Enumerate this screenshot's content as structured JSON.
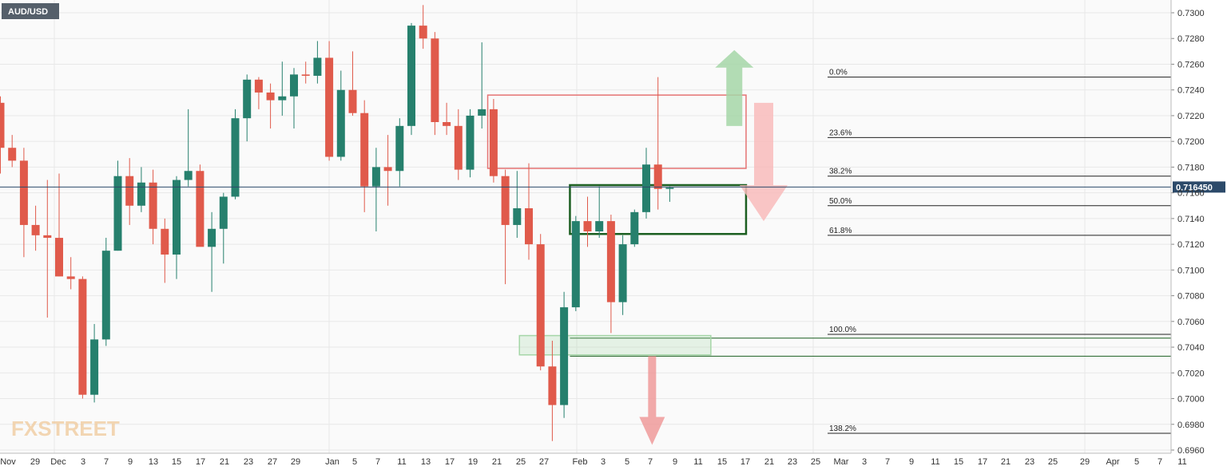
{
  "instrument": "AUD/USD",
  "watermark": "FXSTREET",
  "current_price_label": "0.716450",
  "chart_data": {
    "type": "candlestick",
    "title": "AUD/USD",
    "x_axis_labels": [
      "Nov",
      "29",
      "Dec",
      "3",
      "7",
      "9",
      "13",
      "15",
      "17",
      "21",
      "23",
      "27",
      "29",
      "Jan",
      "5",
      "7",
      "11",
      "13",
      "17",
      "19",
      "21",
      "25",
      "27",
      "Feb",
      "3",
      "5",
      "7",
      "9",
      "11",
      "15",
      "17",
      "21",
      "23",
      "25",
      "Mar",
      "3",
      "7",
      "9",
      "11",
      "15",
      "17",
      "21",
      "23",
      "25",
      "29",
      "Apr",
      "5",
      "7",
      "11"
    ],
    "y_ticks": [
      "0.7300",
      "0.7280",
      "0.7260",
      "0.7240",
      "0.7220",
      "0.7200",
      "0.7180",
      "0.7160",
      "0.7140",
      "0.7120",
      "0.7100",
      "0.7080",
      "0.7060",
      "0.7040",
      "0.7020",
      "0.7000",
      "0.6980",
      "0.6960"
    ],
    "ylim": [
      0.696,
      0.7306
    ],
    "grid": true,
    "current_price": 0.71645,
    "candles": [
      {
        "o": 0.723,
        "h": 0.7235,
        "l": 0.7175,
        "c": 0.7195
      },
      {
        "o": 0.7195,
        "h": 0.7205,
        "l": 0.718,
        "c": 0.7185
      },
      {
        "o": 0.7185,
        "h": 0.7195,
        "l": 0.711,
        "c": 0.7135
      },
      {
        "o": 0.7135,
        "h": 0.715,
        "l": 0.7115,
        "c": 0.7127
      },
      {
        "o": 0.7127,
        "h": 0.717,
        "l": 0.7063,
        "c": 0.7125
      },
      {
        "o": 0.7125,
        "h": 0.7175,
        "l": 0.7095,
        "c": 0.7095
      },
      {
        "o": 0.7095,
        "h": 0.711,
        "l": 0.7085,
        "c": 0.7093
      },
      {
        "o": 0.7093,
        "h": 0.7095,
        "l": 0.7,
        "c": 0.7003
      },
      {
        "o": 0.7003,
        "h": 0.7058,
        "l": 0.6997,
        "c": 0.7046
      },
      {
        "o": 0.7046,
        "h": 0.7125,
        "l": 0.7041,
        "c": 0.7115
      },
      {
        "o": 0.7115,
        "h": 0.7185,
        "l": 0.7115,
        "c": 0.7173
      },
      {
        "o": 0.7173,
        "h": 0.7187,
        "l": 0.7135,
        "c": 0.715
      },
      {
        "o": 0.715,
        "h": 0.718,
        "l": 0.7145,
        "c": 0.7168
      },
      {
        "o": 0.7168,
        "h": 0.7178,
        "l": 0.712,
        "c": 0.7132
      },
      {
        "o": 0.7132,
        "h": 0.714,
        "l": 0.709,
        "c": 0.7112
      },
      {
        "o": 0.7112,
        "h": 0.7173,
        "l": 0.7093,
        "c": 0.717
      },
      {
        "o": 0.717,
        "h": 0.7225,
        "l": 0.7165,
        "c": 0.7177
      },
      {
        "o": 0.7177,
        "h": 0.7182,
        "l": 0.712,
        "c": 0.7118
      },
      {
        "o": 0.7118,
        "h": 0.7145,
        "l": 0.7083,
        "c": 0.7132
      },
      {
        "o": 0.7132,
        "h": 0.716,
        "l": 0.7105,
        "c": 0.7157
      },
      {
        "o": 0.7157,
        "h": 0.7225,
        "l": 0.7155,
        "c": 0.7218
      },
      {
        "o": 0.7218,
        "h": 0.7252,
        "l": 0.72,
        "c": 0.7248
      },
      {
        "o": 0.7248,
        "h": 0.725,
        "l": 0.7225,
        "c": 0.7238
      },
      {
        "o": 0.7238,
        "h": 0.7245,
        "l": 0.721,
        "c": 0.7232
      },
      {
        "o": 0.7232,
        "h": 0.7262,
        "l": 0.722,
        "c": 0.7235
      },
      {
        "o": 0.7235,
        "h": 0.7257,
        "l": 0.721,
        "c": 0.7252
      },
      {
        "o": 0.7252,
        "h": 0.7262,
        "l": 0.7245,
        "c": 0.7251
      },
      {
        "o": 0.7251,
        "h": 0.7278,
        "l": 0.7245,
        "c": 0.7265
      },
      {
        "o": 0.7265,
        "h": 0.7278,
        "l": 0.7185,
        "c": 0.7188
      },
      {
        "o": 0.7188,
        "h": 0.7255,
        "l": 0.7185,
        "c": 0.724
      },
      {
        "o": 0.724,
        "h": 0.727,
        "l": 0.722,
        "c": 0.7222
      },
      {
        "o": 0.7222,
        "h": 0.7232,
        "l": 0.7145,
        "c": 0.7165
      },
      {
        "o": 0.7165,
        "h": 0.7195,
        "l": 0.713,
        "c": 0.718
      },
      {
        "o": 0.718,
        "h": 0.7205,
        "l": 0.715,
        "c": 0.7177
      },
      {
        "o": 0.7177,
        "h": 0.7218,
        "l": 0.7165,
        "c": 0.7212
      },
      {
        "o": 0.7212,
        "h": 0.7292,
        "l": 0.7205,
        "c": 0.729
      },
      {
        "o": 0.729,
        "h": 0.7306,
        "l": 0.7272,
        "c": 0.728
      },
      {
        "o": 0.728,
        "h": 0.7285,
        "l": 0.7205,
        "c": 0.7215
      },
      {
        "o": 0.7215,
        "h": 0.723,
        "l": 0.7205,
        "c": 0.7212
      },
      {
        "o": 0.7212,
        "h": 0.7225,
        "l": 0.717,
        "c": 0.7178
      },
      {
        "o": 0.7178,
        "h": 0.7225,
        "l": 0.7172,
        "c": 0.722
      },
      {
        "o": 0.722,
        "h": 0.7277,
        "l": 0.721,
        "c": 0.7225
      },
      {
        "o": 0.7225,
        "h": 0.7233,
        "l": 0.7168,
        "c": 0.7173
      },
      {
        "o": 0.7173,
        "h": 0.7178,
        "l": 0.7089,
        "c": 0.7135
      },
      {
        "o": 0.7135,
        "h": 0.7177,
        "l": 0.7125,
        "c": 0.7148
      },
      {
        "o": 0.7148,
        "h": 0.7183,
        "l": 0.7108,
        "c": 0.712
      },
      {
        "o": 0.712,
        "h": 0.7128,
        "l": 0.7022,
        "c": 0.7025
      },
      {
        "o": 0.7025,
        "h": 0.7045,
        "l": 0.6967,
        "c": 0.6995
      },
      {
        "o": 0.6995,
        "h": 0.7083,
        "l": 0.6985,
        "c": 0.7071
      },
      {
        "o": 0.7071,
        "h": 0.7142,
        "l": 0.7068,
        "c": 0.7138
      },
      {
        "o": 0.7138,
        "h": 0.7157,
        "l": 0.7118,
        "c": 0.713
      },
      {
        "o": 0.713,
        "h": 0.7165,
        "l": 0.7125,
        "c": 0.7138
      },
      {
        "o": 0.7138,
        "h": 0.7143,
        "l": 0.7051,
        "c": 0.7075
      },
      {
        "o": 0.7075,
        "h": 0.7127,
        "l": 0.7065,
        "c": 0.712
      },
      {
        "o": 0.712,
        "h": 0.7147,
        "l": 0.7118,
        "c": 0.7145
      },
      {
        "o": 0.7145,
        "h": 0.7195,
        "l": 0.714,
        "c": 0.7182
      },
      {
        "o": 0.7182,
        "h": 0.725,
        "l": 0.7147,
        "c": 0.7163
      },
      {
        "o": 0.7163,
        "h": 0.7165,
        "l": 0.7153,
        "c": 0.7164
      }
    ],
    "fibonacci": [
      {
        "label": "0.0%",
        "price": 0.725
      },
      {
        "label": "23.6%",
        "price": 0.7203
      },
      {
        "label": "38.2%",
        "price": 0.7173
      },
      {
        "label": "50.0%",
        "price": 0.715
      },
      {
        "label": "61.8%",
        "price": 0.7127
      },
      {
        "label": "100.0%",
        "price": 0.705
      },
      {
        "label": "138.2%",
        "price": 0.6973
      }
    ],
    "support_resistance": [
      0.7047,
      0.7033
    ],
    "zones": [
      {
        "name": "red-supply-zone",
        "color": "#e57373",
        "x0": 41.5,
        "x1": 63.5,
        "p_top": 0.7236,
        "p_bot": 0.7179,
        "fill": false
      },
      {
        "name": "green-demand-zone",
        "color": "#1b5e20",
        "x0": 48.5,
        "x1": 63.5,
        "p_top": 0.7166,
        "p_bot": 0.7128,
        "fill": false
      },
      {
        "name": "light-green-support-zone",
        "color": "#a5d6a7",
        "x0": 44.2,
        "x1": 60.5,
        "p_top": 0.7049,
        "p_bot": 0.7034,
        "fill": true
      }
    ],
    "arrows": [
      {
        "name": "up-arrow",
        "dir": "up",
        "color": "#a5d6a7",
        "x": 62.5,
        "p_from": 0.7212,
        "p_to": 0.7271
      },
      {
        "name": "down-arrow-light",
        "dir": "down",
        "color": "#f8bbbb",
        "x": 65.0,
        "p_from": 0.723,
        "p_to": 0.7138
      },
      {
        "name": "down-arrow-strong",
        "dir": "down",
        "color": "#ef9a9a",
        "x": 55.5,
        "p_from": 0.7033,
        "p_to": 0.6964
      }
    ],
    "colors": {
      "up": "#26806d",
      "down": "#e05a4b",
      "fib": "#222222",
      "sr": "#1b5e20",
      "price_line": "#2c4a6a",
      "price_label_bg": "#2c4a6a"
    }
  }
}
